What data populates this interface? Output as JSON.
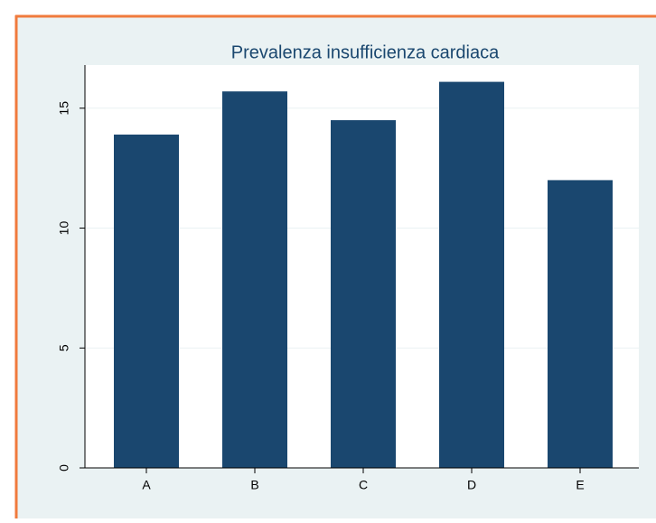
{
  "chart_data": {
    "type": "bar",
    "title": "Prevalenza insufficienza cardiaca",
    "categories": [
      "A",
      "B",
      "C",
      "D",
      "E"
    ],
    "values": [
      13.9,
      15.7,
      14.5,
      16.1,
      12.0
    ],
    "color": "#1a476f",
    "ylim": [
      0,
      16.8
    ],
    "yticks": [
      0,
      5,
      10,
      15
    ],
    "grid": true
  }
}
